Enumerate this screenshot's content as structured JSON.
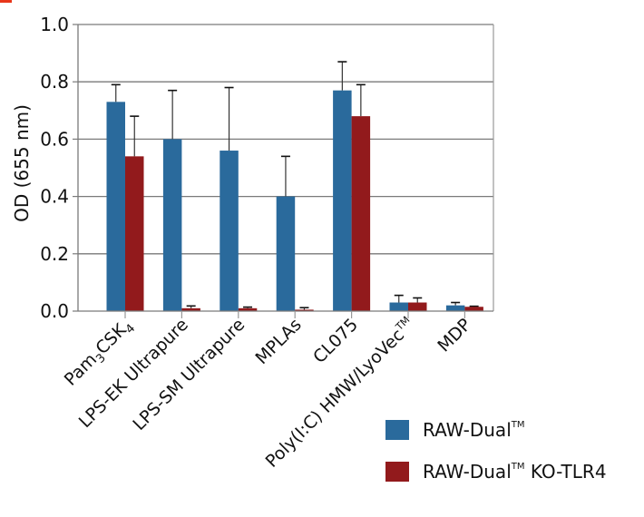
{
  "chart_data": {
    "type": "bar",
    "title": "",
    "xlabel": "",
    "ylabel": "OD (655 nm)",
    "ylim": [
      0.0,
      1.0
    ],
    "yticks": [
      "0.0",
      "0.2",
      "0.4",
      "0.6",
      "0.8",
      "1.0"
    ],
    "grid": true,
    "legend_position": "bottom-right",
    "categories": [
      "Pam3CSK4",
      "LPS-EK Ultrapure",
      "LPS-SM Ultrapure",
      "MPLAs",
      "CL075",
      "Poly(I:C) HMW/LyoVec™",
      "MDP"
    ],
    "series": [
      {
        "name": "RAW-Dual™",
        "color": "#2a6a9c",
        "values": [
          0.73,
          0.6,
          0.56,
          0.4,
          0.77,
          0.03,
          0.02
        ],
        "error_upper": [
          0.79,
          0.77,
          0.78,
          0.54,
          0.87,
          0.055,
          0.03
        ]
      },
      {
        "name": "RAW-Dual™ KO-TLR4",
        "color": "#921a1c",
        "values": [
          0.54,
          0.01,
          0.01,
          0.005,
          0.68,
          0.03,
          0.015
        ],
        "error_upper": [
          0.68,
          0.018,
          0.014,
          0.012,
          0.79,
          0.046,
          0.017
        ]
      }
    ]
  },
  "legend": {
    "items": [
      {
        "base": "RAW-Dual",
        "tm": "TM",
        "suffix": "",
        "color": "#2a6a9c"
      },
      {
        "base": "RAW-Dual",
        "tm": "TM",
        "suffix": " KO-TLR4",
        "color": "#921a1c"
      }
    ]
  }
}
